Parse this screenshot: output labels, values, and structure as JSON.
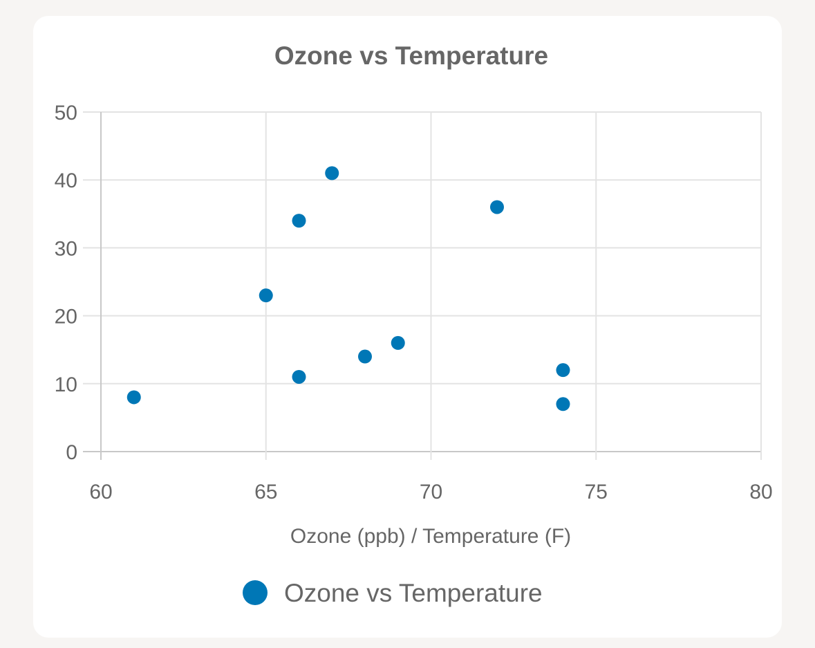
{
  "chart_data": {
    "type": "scatter",
    "title": "Ozone vs Temperature",
    "xlabel": "Ozone (ppb) / Temperature (F)",
    "ylabel": "",
    "xlim": [
      60,
      80
    ],
    "ylim": [
      0,
      50
    ],
    "x_ticks": [
      "60",
      "65",
      "70",
      "75",
      "80"
    ],
    "y_ticks": [
      "0",
      "10",
      "20",
      "30",
      "40",
      "50"
    ],
    "grid": true,
    "legend_position": "bottom",
    "series": [
      {
        "name": "Ozone vs Temperature",
        "color": "#0077b6",
        "points": [
          {
            "x": 61,
            "y": 8
          },
          {
            "x": 65,
            "y": 23
          },
          {
            "x": 66,
            "y": 34
          },
          {
            "x": 66,
            "y": 11
          },
          {
            "x": 67,
            "y": 41
          },
          {
            "x": 68,
            "y": 14
          },
          {
            "x": 69,
            "y": 16
          },
          {
            "x": 72,
            "y": 36
          },
          {
            "x": 74,
            "y": 12
          },
          {
            "x": 74,
            "y": 7
          }
        ]
      }
    ]
  }
}
